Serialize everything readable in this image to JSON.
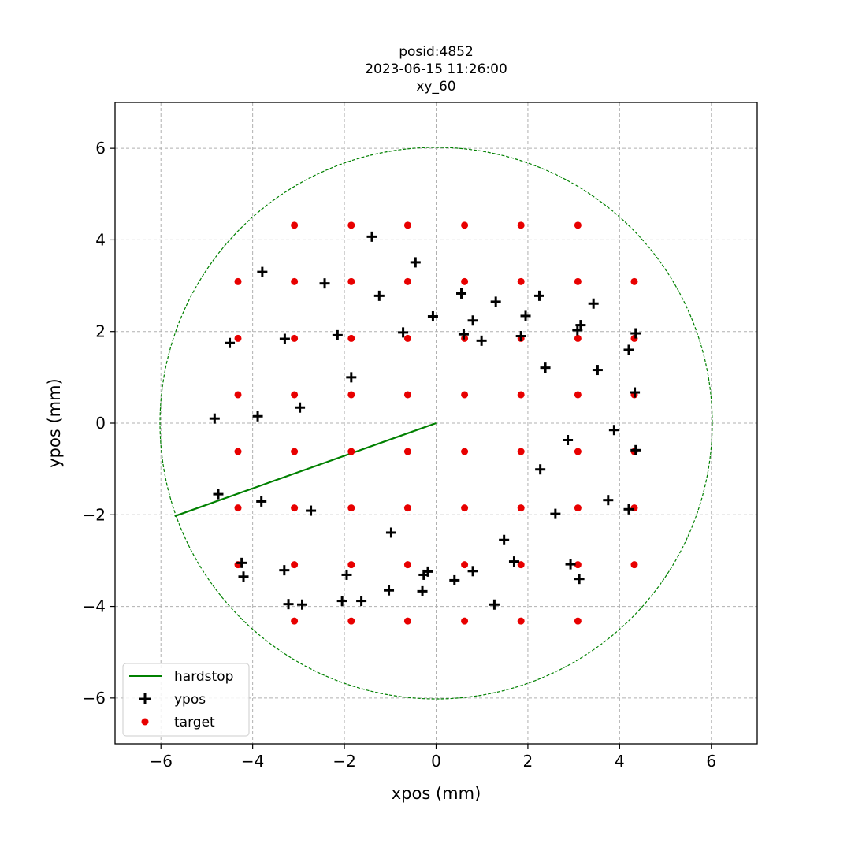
{
  "chart_data": {
    "type": "scatter",
    "title": [
      "posid:4852",
      "2023-06-15 11:26:00",
      "xy_60"
    ],
    "xlabel": "xpos (mm)",
    "ylabel": "ypos (mm)",
    "xlim": [
      -7,
      7
    ],
    "ylim": [
      -7,
      7
    ],
    "xticks": [
      -6,
      -4,
      -2,
      0,
      2,
      4,
      6
    ],
    "yticks": [
      -6,
      -4,
      -2,
      0,
      2,
      4,
      6
    ],
    "grid": true,
    "legend_position": "lower-left",
    "circle": {
      "center": [
        0,
        0
      ],
      "radius": 6.02,
      "color": "#008000",
      "style": "dashed"
    },
    "series": [
      {
        "name": "hardstop",
        "kind": "line",
        "color": "#008000",
        "x": [
          0,
          -5.7
        ],
        "y": [
          0,
          -2.03
        ]
      },
      {
        "name": "ypos",
        "kind": "scatter",
        "marker": "plus",
        "color": "#000000",
        "x": [
          -1.4,
          -0.45,
          -3.79,
          -2.43,
          -1.24,
          0.55,
          1.3,
          2.25,
          3.43,
          -0.07,
          0.8,
          1.95,
          3.15,
          -4.5,
          -3.3,
          -2.15,
          -0.72,
          0.6,
          0.99,
          1.85,
          3.08,
          4.35,
          4.2,
          -1.85,
          2.38,
          3.52,
          -4.83,
          -3.89,
          -2.97,
          4.33,
          3.88,
          2.87,
          4.35,
          2.27,
          -4.75,
          -3.81,
          -2.73,
          3.75,
          4.2,
          2.6,
          -0.98,
          1.48,
          -4.24,
          -3.31,
          -1.95,
          -0.27,
          -0.18,
          1.7,
          2.93,
          -4.2,
          0.8,
          3.12,
          -1.03,
          -0.3,
          0.4,
          -3.22,
          -2.92,
          -2.05,
          -1.63,
          1.27
        ],
        "y": [
          4.07,
          3.51,
          3.3,
          3.05,
          2.78,
          2.83,
          2.65,
          2.78,
          2.61,
          2.33,
          2.24,
          2.34,
          2.14,
          1.75,
          1.84,
          1.92,
          1.98,
          1.94,
          1.8,
          1.9,
          2.03,
          1.96,
          1.6,
          1.0,
          1.21,
          1.16,
          0.1,
          0.15,
          0.34,
          0.67,
          -0.15,
          -0.37,
          -0.59,
          -1.01,
          -1.55,
          -1.71,
          -1.91,
          -1.68,
          -1.88,
          -1.98,
          -2.39,
          -2.55,
          -3.05,
          -3.21,
          -3.31,
          -3.31,
          -3.24,
          -3.02,
          -3.08,
          -3.35,
          -3.23,
          -3.4,
          -3.65,
          -3.67,
          -3.43,
          -3.95,
          -3.96,
          -3.88,
          -3.88,
          -3.96
        ]
      },
      {
        "name": "target",
        "kind": "scatter",
        "marker": "dot",
        "color": "#e80000",
        "x": [
          -3.09,
          -1.85,
          -0.62,
          0.62,
          1.85,
          3.09,
          -4.32,
          -3.09,
          -1.85,
          -0.62,
          0.62,
          1.85,
          3.09,
          4.32,
          -4.32,
          -3.09,
          -1.85,
          -0.62,
          0.62,
          1.85,
          3.09,
          4.32,
          -4.32,
          -3.09,
          -1.85,
          -0.62,
          0.62,
          1.85,
          3.09,
          4.32,
          -4.32,
          -3.09,
          -1.85,
          -0.62,
          0.62,
          1.85,
          3.09,
          4.32,
          -4.32,
          -3.09,
          -1.85,
          -0.62,
          0.62,
          1.85,
          3.09,
          4.32,
          -4.32,
          -3.09,
          -1.85,
          -0.62,
          0.62,
          1.85,
          3.09,
          4.32,
          -3.09,
          -1.85,
          -0.62,
          0.62,
          1.85,
          3.09
        ],
        "y": [
          4.32,
          4.32,
          4.32,
          4.32,
          4.32,
          4.32,
          3.09,
          3.09,
          3.09,
          3.09,
          3.09,
          3.09,
          3.09,
          3.09,
          1.85,
          1.85,
          1.85,
          1.85,
          1.85,
          1.85,
          1.85,
          1.85,
          0.62,
          0.62,
          0.62,
          0.62,
          0.62,
          0.62,
          0.62,
          0.62,
          -0.62,
          -0.62,
          -0.62,
          -0.62,
          -0.62,
          -0.62,
          -0.62,
          -0.62,
          -1.85,
          -1.85,
          -1.85,
          -1.85,
          -1.85,
          -1.85,
          -1.85,
          -1.85,
          -3.09,
          -3.09,
          -3.09,
          -3.09,
          -3.09,
          -3.09,
          -3.09,
          -3.09,
          -4.32,
          -4.32,
          -4.32,
          -4.32,
          -4.32,
          -4.32
        ]
      }
    ]
  }
}
